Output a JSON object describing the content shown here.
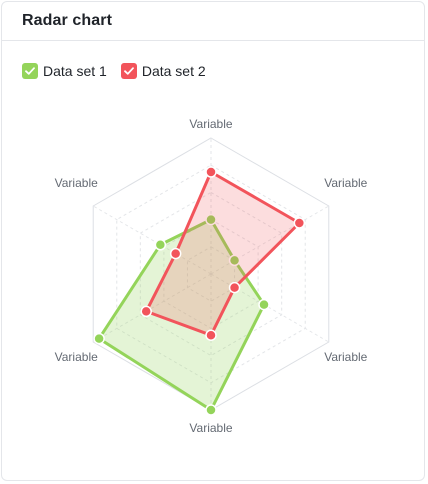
{
  "card": {
    "title": "Radar chart"
  },
  "colors": {
    "series1": "#94d45a",
    "series1_fill": "rgba(148, 212, 90, 0.25)",
    "series2": "#f2545b",
    "series2_fill": "rgba(242, 84, 91, 0.20)",
    "grid": "#dcdfe4",
    "grid_dashed": "#e3e5e8"
  },
  "legend": {
    "items": [
      {
        "label": "Data set 1",
        "icon": "check-icon",
        "color": "#94d45a"
      },
      {
        "label": "Data set 2",
        "icon": "check-icon",
        "color": "#f2545b"
      }
    ]
  },
  "chart_data": {
    "type": "radar",
    "title": "",
    "axes": [
      "Variable",
      "Variable",
      "Variable",
      "Variable",
      "Variable",
      "Variable"
    ],
    "range": [
      0,
      100
    ],
    "grid_levels": 5,
    "legend_position": "top-left",
    "series": [
      {
        "name": "Data set 1",
        "values": [
          40,
          20,
          45,
          100,
          95,
          43
        ]
      },
      {
        "name": "Data set 2",
        "values": [
          75,
          75,
          20,
          45,
          55,
          30
        ]
      }
    ]
  }
}
